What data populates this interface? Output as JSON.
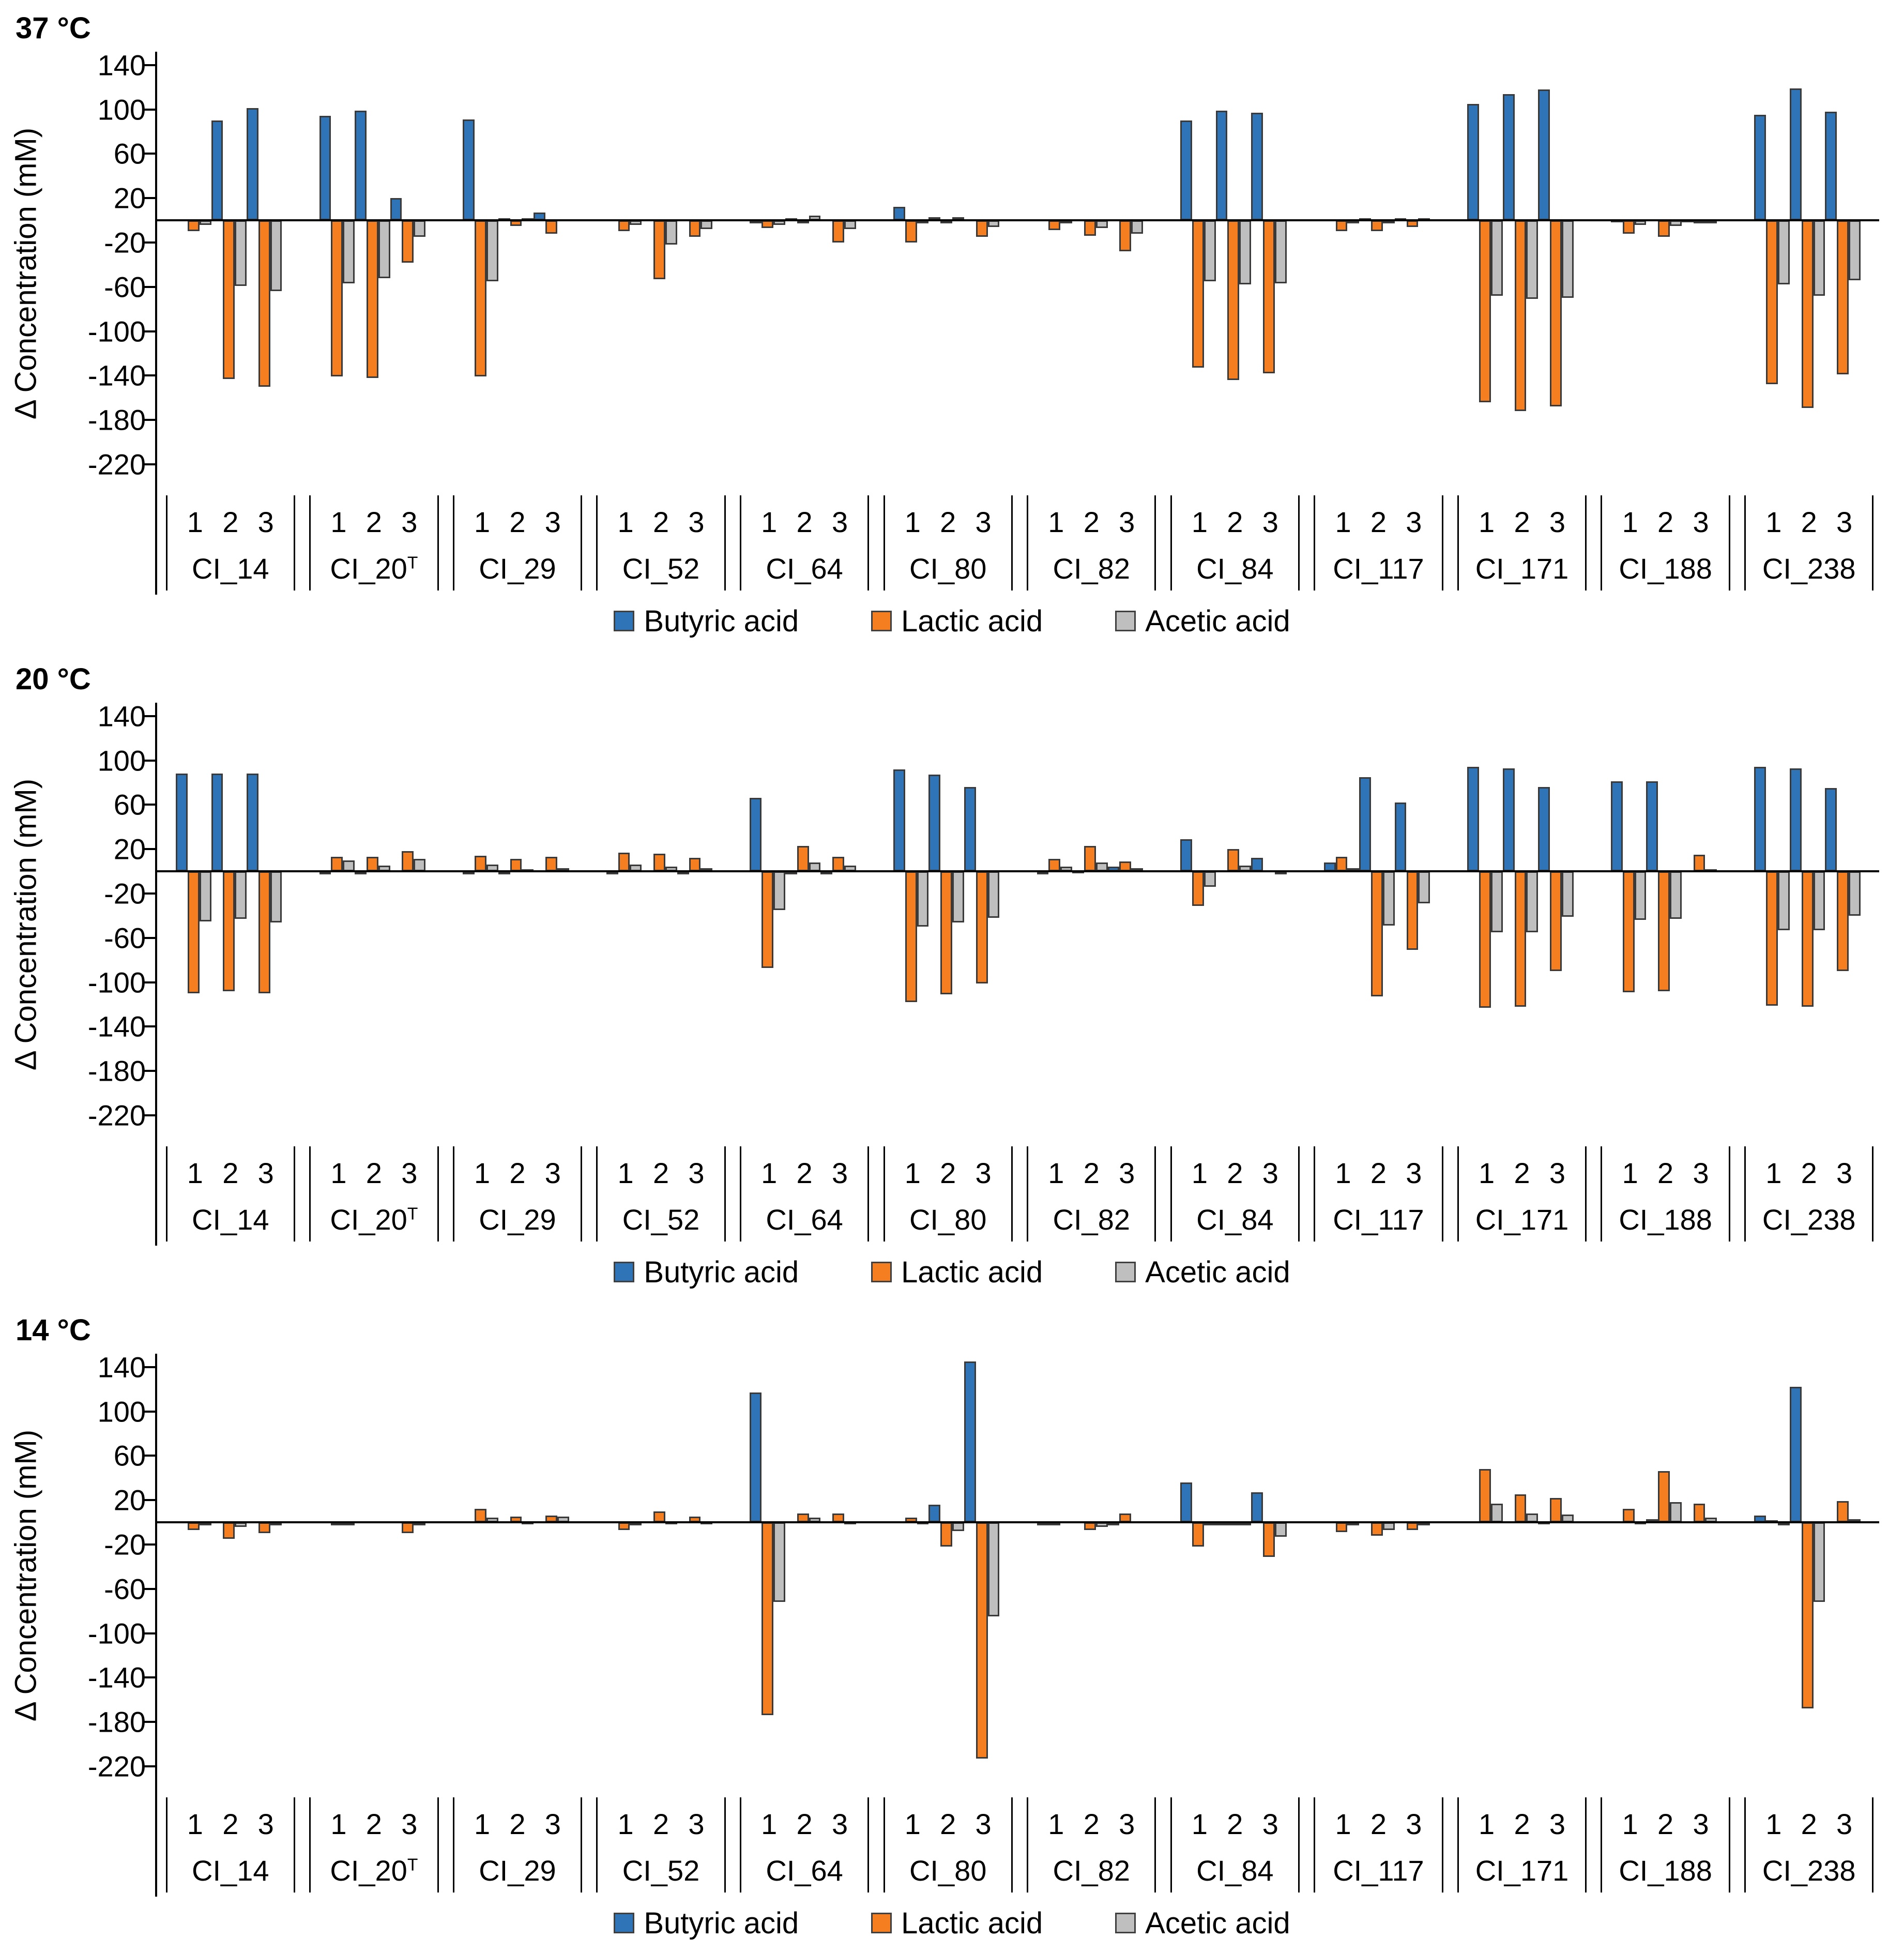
{
  "figure": {
    "background": "#ffffff",
    "axis_color": "#000000",
    "bar_border_color": "#3a3a3a"
  },
  "chart_data": [
    {
      "type": "bar",
      "title": "37 °C",
      "ylabel": "Δ Concentration (mM)",
      "ylim": [
        -248,
        152
      ],
      "yticks": [
        140,
        100,
        60,
        20,
        -20,
        -60,
        -100,
        -140,
        -180,
        -220
      ],
      "grid": false,
      "legend_position": "bottom",
      "replicates": [
        "1",
        "2",
        "3"
      ],
      "categories": [
        {
          "name": "CI_14",
          "sup": ""
        },
        {
          "name": "CI_20",
          "sup": "T"
        },
        {
          "name": "CI_29",
          "sup": ""
        },
        {
          "name": "CI_52",
          "sup": ""
        },
        {
          "name": "CI_64",
          "sup": ""
        },
        {
          "name": "CI_80",
          "sup": ""
        },
        {
          "name": "CI_82",
          "sup": ""
        },
        {
          "name": "CI_84",
          "sup": ""
        },
        {
          "name": "CI_117",
          "sup": ""
        },
        {
          "name": "CI_171",
          "sup": ""
        },
        {
          "name": "CI_188",
          "sup": ""
        },
        {
          "name": "CI_238",
          "sup": ""
        }
      ],
      "series": [
        {
          "name": "Butyric acid",
          "color": "#2E74B6",
          "values": [
            [
              0,
              90,
              101
            ],
            [
              94,
              99,
              20
            ],
            [
              91,
              2,
              7
            ],
            [
              0,
              0,
              0
            ],
            [
              -2,
              2,
              0
            ],
            [
              12,
              3,
              0
            ],
            [
              0,
              0,
              0
            ],
            [
              90,
              99,
              97
            ],
            [
              0,
              2,
              2
            ],
            [
              105,
              114,
              118
            ],
            [
              1,
              0,
              1
            ],
            [
              95,
              119,
              98
            ]
          ]
        },
        {
          "name": "Lactic acid",
          "color": "#F57E20",
          "values": [
            [
              -10,
              -143,
              -150
            ],
            [
              -141,
              -142,
              -38
            ],
            [
              -141,
              -5,
              -12
            ],
            [
              -10,
              -53,
              -15
            ],
            [
              -7,
              -2,
              -20
            ],
            [
              -20,
              -3,
              -15
            ],
            [
              -9,
              -14,
              -28
            ],
            [
              -133,
              -144,
              -138
            ],
            [
              -10,
              -10,
              -6
            ],
            [
              -164,
              -172,
              -168
            ],
            [
              -12,
              -15,
              -3
            ],
            [
              -148,
              -169,
              -139
            ]
          ]
        },
        {
          "name": "Acetic acid",
          "color": "#BFBFBF",
          "values": [
            [
              -4,
              -59,
              -64
            ],
            [
              -57,
              -52,
              -15
            ],
            [
              -55,
              2,
              0
            ],
            [
              -4,
              -22,
              -8
            ],
            [
              -4,
              4,
              -8
            ],
            [
              -3,
              3,
              -6
            ],
            [
              -3,
              -7,
              -12
            ],
            [
              -55,
              -58,
              -57
            ],
            [
              -3,
              -2,
              2
            ],
            [
              -68,
              -71,
              -70
            ],
            [
              -4,
              -5,
              -2
            ],
            [
              -58,
              -68,
              -54
            ]
          ]
        }
      ]
    },
    {
      "type": "bar",
      "title": "20 °C",
      "ylabel": "Δ Concentration (mM)",
      "ylim": [
        -248,
        152
      ],
      "yticks": [
        140,
        100,
        60,
        20,
        -20,
        -60,
        -100,
        -140,
        -180,
        -220
      ],
      "grid": false,
      "legend_position": "bottom",
      "replicates": [
        "1",
        "2",
        "3"
      ],
      "categories": [
        {
          "name": "CI_14",
          "sup": ""
        },
        {
          "name": "CI_20",
          "sup": "T"
        },
        {
          "name": "CI_29",
          "sup": ""
        },
        {
          "name": "CI_52",
          "sup": ""
        },
        {
          "name": "CI_64",
          "sup": ""
        },
        {
          "name": "CI_80",
          "sup": ""
        },
        {
          "name": "CI_82",
          "sup": ""
        },
        {
          "name": "CI_84",
          "sup": ""
        },
        {
          "name": "CI_117",
          "sup": ""
        },
        {
          "name": "CI_171",
          "sup": ""
        },
        {
          "name": "CI_188",
          "sup": ""
        },
        {
          "name": "CI_238",
          "sup": ""
        }
      ],
      "series": [
        {
          "name": "Butyric acid",
          "color": "#2E74B6",
          "values": [
            [
              88,
              88,
              88
            ],
            [
              -1,
              -1,
              0
            ],
            [
              -1,
              -1,
              0
            ],
            [
              -1,
              0,
              -1
            ],
            [
              66,
              -1,
              -1
            ],
            [
              92,
              87,
              76
            ],
            [
              -1,
              1,
              4
            ],
            [
              29,
              0,
              12
            ],
            [
              8,
              85,
              62
            ],
            [
              94,
              93,
              76
            ],
            [
              81,
              81,
              0
            ],
            [
              94,
              93,
              75
            ]
          ]
        },
        {
          "name": "Lactic acid",
          "color": "#F57E20",
          "values": [
            [
              -110,
              -108,
              -110
            ],
            [
              13,
              13,
              18
            ],
            [
              14,
              11,
              13
            ],
            [
              17,
              16,
              12
            ],
            [
              -87,
              23,
              13
            ],
            [
              -118,
              -111,
              -101
            ],
            [
              11,
              23,
              9
            ],
            [
              -31,
              20,
              0
            ],
            [
              13,
              -113,
              -71
            ],
            [
              -123,
              -122,
              -90
            ],
            [
              -109,
              -108,
              15
            ],
            [
              -121,
              -122,
              -90
            ]
          ]
        },
        {
          "name": "Acetic acid",
          "color": "#BFBFBF",
          "values": [
            [
              -45,
              -43,
              -46
            ],
            [
              10,
              5,
              11
            ],
            [
              6,
              2,
              3
            ],
            [
              6,
              4,
              3
            ],
            [
              -35,
              8,
              5
            ],
            [
              -50,
              -46,
              -42
            ],
            [
              4,
              8,
              3
            ],
            [
              -14,
              5,
              -3
            ],
            [
              3,
              -49,
              -29
            ],
            [
              -55,
              -55,
              -41
            ],
            [
              -44,
              -43,
              2
            ],
            [
              -53,
              -53,
              -40
            ]
          ]
        }
      ]
    },
    {
      "type": "bar",
      "title": "14 °C",
      "ylabel": "Δ Concentration (mM)",
      "ylim": [
        -248,
        152
      ],
      "yticks": [
        140,
        100,
        60,
        20,
        -20,
        -60,
        -100,
        -140,
        -180,
        -220
      ],
      "grid": false,
      "legend_position": "bottom",
      "replicates": [
        "1",
        "2",
        "3"
      ],
      "categories": [
        {
          "name": "CI_14",
          "sup": ""
        },
        {
          "name": "CI_20",
          "sup": "T"
        },
        {
          "name": "CI_29",
          "sup": ""
        },
        {
          "name": "CI_52",
          "sup": ""
        },
        {
          "name": "CI_64",
          "sup": ""
        },
        {
          "name": "CI_80",
          "sup": ""
        },
        {
          "name": "CI_82",
          "sup": ""
        },
        {
          "name": "CI_84",
          "sup": ""
        },
        {
          "name": "CI_117",
          "sup": ""
        },
        {
          "name": "CI_171",
          "sup": ""
        },
        {
          "name": "CI_188",
          "sup": ""
        },
        {
          "name": "CI_238",
          "sup": ""
        }
      ],
      "series": [
        {
          "name": "Butyric acid",
          "color": "#2E74B6",
          "values": [
            [
              0,
              0,
              0
            ],
            [
              0,
              0,
              0
            ],
            [
              0,
              0,
              0
            ],
            [
              0,
              0,
              0
            ],
            [
              117,
              0,
              0
            ],
            [
              0,
              16,
              145
            ],
            [
              -1,
              0,
              -1
            ],
            [
              36,
              -2,
              27
            ],
            [
              0,
              0,
              0
            ],
            [
              0,
              0,
              1
            ],
            [
              0,
              3,
              0
            ],
            [
              6,
              122,
              0
            ]
          ]
        },
        {
          "name": "Lactic acid",
          "color": "#F57E20",
          "values": [
            [
              -7,
              -15,
              -10
            ],
            [
              -2,
              0,
              -10
            ],
            [
              12,
              5,
              6
            ],
            [
              -7,
              10,
              5
            ],
            [
              -174,
              8,
              8
            ],
            [
              4,
              -22,
              -213
            ],
            [
              -2,
              -7,
              8
            ],
            [
              -22,
              -3,
              -31
            ],
            [
              -9,
              -12,
              -7
            ],
            [
              48,
              25,
              22
            ],
            [
              12,
              46,
              17
            ],
            [
              2,
              -168,
              19
            ]
          ]
        },
        {
          "name": "Acetic acid",
          "color": "#BFBFBF",
          "values": [
            [
              -2,
              -4,
              -3
            ],
            [
              -1,
              0,
              -1
            ],
            [
              4,
              1,
              5
            ],
            [
              -3,
              1,
              1
            ],
            [
              -72,
              4,
              1
            ],
            [
              1,
              -8,
              -85
            ],
            [
              0,
              -4,
              0
            ],
            [
              -3,
              -2,
              -13
            ],
            [
              -3,
              -7,
              -3
            ],
            [
              17,
              8,
              7
            ],
            [
              1,
              18,
              4
            ],
            [
              -3,
              -72,
              3
            ]
          ]
        }
      ]
    }
  ]
}
